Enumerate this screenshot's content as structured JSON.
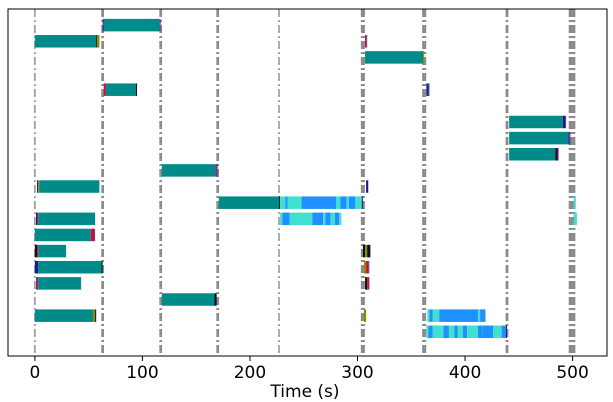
{
  "chart_data": {
    "type": "bar",
    "orientation": "horizontal-timeline",
    "title": "",
    "xlabel": "Time (s)",
    "ylabel": "",
    "xlim": [
      -25,
      532
    ],
    "ylim": [
      0,
      21.5
    ],
    "grid": false,
    "legend": "none",
    "x_ticks": [
      0,
      100,
      200,
      300,
      400,
      500
    ],
    "colors": {
      "teal": "#008b8b",
      "turquoise": "#40e0d0",
      "dodgerblue": "#1e90ff",
      "navy": "#1a1a8c",
      "purple": "#7b2d8e",
      "crimson": "#c8102e",
      "olive": "#8b8b00",
      "black": "#111111",
      "slate": "#4a6fa5",
      "phase_line": "#888888"
    },
    "phase_lines": [
      {
        "x": 0,
        "count": 1
      },
      {
        "x": 63,
        "count": 2
      },
      {
        "x": 117,
        "count": 2
      },
      {
        "x": 170,
        "count": 2
      },
      {
        "x": 227,
        "count": 1
      },
      {
        "x": 305,
        "count": 3
      },
      {
        "x": 362,
        "count": 3
      },
      {
        "x": 439,
        "count": 2
      },
      {
        "x": 499.5,
        "count": 5
      }
    ],
    "rows": [
      {
        "row": 1,
        "segments": [
          [
            63,
            64,
            "navy"
          ],
          [
            64,
            116,
            "teal"
          ],
          [
            116,
            117,
            "purple"
          ]
        ]
      },
      {
        "row": 2,
        "segments": [
          [
            0,
            57,
            "teal"
          ],
          [
            57,
            58,
            "black"
          ],
          [
            58,
            60,
            "olive"
          ],
          [
            307,
            308,
            "crimson"
          ],
          [
            308,
            309,
            "purple"
          ]
        ]
      },
      {
        "row": 3,
        "segments": [
          [
            307,
            361,
            "teal"
          ],
          [
            361,
            362,
            "olive"
          ]
        ]
      },
      {
        "row": 4,
        "segments": []
      },
      {
        "row": 5,
        "segments": [
          [
            64,
            66,
            "crimson"
          ],
          [
            66,
            94,
            "teal"
          ],
          [
            94,
            95,
            "black"
          ],
          [
            364,
            366,
            "navy"
          ],
          [
            366,
            367,
            "slate"
          ]
        ]
      },
      {
        "row": 6,
        "segments": []
      },
      {
        "row": 7,
        "segments": [
          [
            441,
            491,
            "teal"
          ],
          [
            491,
            493,
            "navy"
          ],
          [
            493,
            494,
            "purple"
          ]
        ]
      },
      {
        "row": 8,
        "segments": [
          [
            441,
            496,
            "teal"
          ],
          [
            496,
            497,
            "navy"
          ],
          [
            497,
            498,
            "purple"
          ]
        ]
      },
      {
        "row": 9,
        "segments": [
          [
            441,
            484,
            "teal"
          ],
          [
            484,
            486,
            "black"
          ],
          [
            486,
            487,
            "purple"
          ]
        ]
      },
      {
        "row": 10,
        "segments": [
          [
            118,
            168,
            "teal"
          ],
          [
            168,
            170,
            "purple"
          ]
        ]
      },
      {
        "row": 11,
        "segments": [
          [
            2,
            3,
            "navy"
          ],
          [
            3,
            4,
            "olive"
          ],
          [
            4,
            60,
            "teal"
          ],
          [
            308,
            310,
            "navy"
          ]
        ]
      },
      {
        "row": 12,
        "segments": [
          [
            171,
            227,
            "teal"
          ],
          [
            227,
            228,
            "black"
          ],
          [
            228,
            233,
            "turquoise"
          ],
          [
            233,
            235,
            "dodgerblue"
          ],
          [
            235,
            248,
            "turquoise"
          ],
          [
            248,
            280,
            "dodgerblue"
          ],
          [
            280,
            284,
            "turquoise"
          ],
          [
            284,
            290,
            "dodgerblue"
          ],
          [
            290,
            292,
            "turquoise"
          ],
          [
            292,
            298,
            "dodgerblue"
          ],
          [
            298,
            304,
            "turquoise"
          ],
          [
            304,
            305,
            "navy"
          ],
          [
            501,
            503,
            "turquoise"
          ]
        ]
      },
      {
        "row": 13,
        "segments": [
          [
            1,
            2,
            "navy"
          ],
          [
            2,
            3,
            "crimson"
          ],
          [
            3,
            56,
            "teal"
          ],
          [
            228,
            230,
            "turquoise"
          ],
          [
            230,
            237,
            "dodgerblue"
          ],
          [
            237,
            258,
            "turquoise"
          ],
          [
            258,
            268,
            "dodgerblue"
          ],
          [
            268,
            270,
            "turquoise"
          ],
          [
            270,
            275,
            "dodgerblue"
          ],
          [
            275,
            279,
            "turquoise"
          ],
          [
            279,
            283,
            "dodgerblue"
          ],
          [
            283,
            285,
            "turquoise"
          ],
          [
            501,
            504,
            "turquoise"
          ]
        ]
      },
      {
        "row": 14,
        "segments": [
          [
            0,
            52,
            "teal"
          ],
          [
            52,
            55,
            "crimson"
          ],
          [
            55,
            56,
            "purple"
          ]
        ]
      },
      {
        "row": 15,
        "segments": [
          [
            0,
            2,
            "black"
          ],
          [
            2,
            3,
            "crimson"
          ],
          [
            3,
            29,
            "teal"
          ],
          [
            305,
            307,
            "black"
          ],
          [
            307,
            309,
            "olive"
          ],
          [
            309,
            312,
            "black"
          ]
        ]
      },
      {
        "row": 16,
        "segments": [
          [
            0,
            3,
            "navy"
          ],
          [
            3,
            62,
            "teal"
          ],
          [
            62,
            63,
            "black"
          ],
          [
            306,
            308,
            "olive"
          ],
          [
            308,
            310,
            "crimson"
          ],
          [
            310,
            311,
            "purple"
          ]
        ]
      },
      {
        "row": 17,
        "segments": [
          [
            1,
            2,
            "purple"
          ],
          [
            2,
            3,
            "crimson"
          ],
          [
            3,
            43,
            "teal"
          ],
          [
            307,
            309,
            "black"
          ],
          [
            309,
            311,
            "crimson"
          ]
        ]
      },
      {
        "row": 18,
        "segments": [
          [
            118,
            167,
            "teal"
          ],
          [
            167,
            169,
            "black"
          ]
        ]
      },
      {
        "row": 19,
        "segments": [
          [
            0,
            54,
            "teal"
          ],
          [
            54,
            56,
            "olive"
          ],
          [
            56,
            57,
            "black"
          ],
          [
            306,
            308,
            "olive"
          ],
          [
            365,
            367,
            "turquoise"
          ],
          [
            367,
            370,
            "dodgerblue"
          ],
          [
            370,
            376,
            "turquoise"
          ],
          [
            376,
            412,
            "dodgerblue"
          ],
          [
            412,
            414,
            "turquoise"
          ],
          [
            414,
            419,
            "dodgerblue"
          ]
        ]
      },
      {
        "row": 20,
        "segments": [
          [
            364,
            366,
            "turquoise"
          ],
          [
            366,
            370,
            "dodgerblue"
          ],
          [
            370,
            380,
            "turquoise"
          ],
          [
            380,
            385,
            "dodgerblue"
          ],
          [
            385,
            390,
            "turquoise"
          ],
          [
            390,
            393,
            "dodgerblue"
          ],
          [
            393,
            398,
            "turquoise"
          ],
          [
            398,
            402,
            "dodgerblue"
          ],
          [
            402,
            412,
            "turquoise"
          ],
          [
            412,
            416,
            "dodgerblue"
          ],
          [
            416,
            426,
            "dodgerblue"
          ],
          [
            426,
            434,
            "turquoise"
          ],
          [
            434,
            438,
            "dodgerblue"
          ],
          [
            438,
            439,
            "navy"
          ]
        ]
      }
    ]
  }
}
